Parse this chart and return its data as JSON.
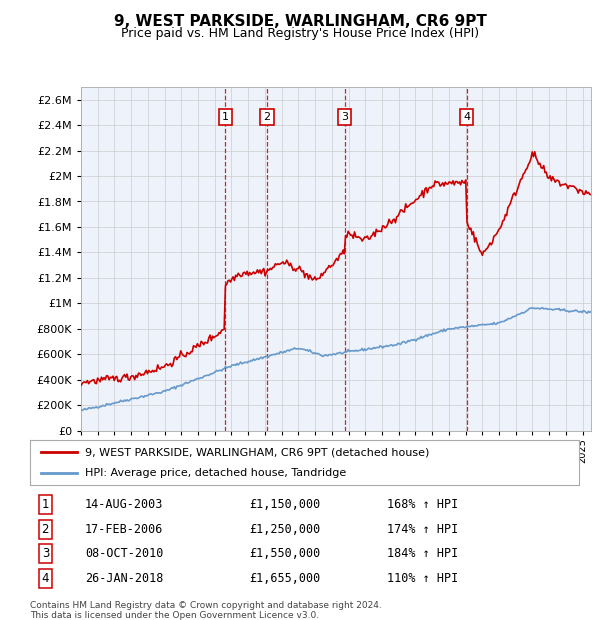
{
  "title": "9, WEST PARKSIDE, WARLINGHAM, CR6 9PT",
  "subtitle": "Price paid vs. HM Land Registry's House Price Index (HPI)",
  "legend_line1": "9, WEST PARKSIDE, WARLINGHAM, CR6 9PT (detached house)",
  "legend_line2": "HPI: Average price, detached house, Tandridge",
  "transactions": [
    {
      "num": 1,
      "date": "14-AUG-2003",
      "year": 2003.62,
      "price": 1150000,
      "pct": "168%",
      "label": "1"
    },
    {
      "num": 2,
      "date": "17-FEB-2006",
      "year": 2006.12,
      "price": 1250000,
      "pct": "174%",
      "label": "2"
    },
    {
      "num": 3,
      "date": "08-OCT-2010",
      "year": 2010.77,
      "price": 1550000,
      "pct": "184%",
      "label": "3"
    },
    {
      "num": 4,
      "date": "26-JAN-2018",
      "year": 2018.07,
      "price": 1655000,
      "pct": "110%",
      "label": "4"
    }
  ],
  "footnote1": "Contains HM Land Registry data © Crown copyright and database right 2024.",
  "footnote2": "This data is licensed under the Open Government Licence v3.0.",
  "hpi_color": "#6699cc",
  "price_color": "#cc0000",
  "vline_color": "#cc0000",
  "box_color": "#cc0000",
  "background_chart": "#eef3fb",
  "ylim_max": 2700000,
  "xlim_start": 1995.0,
  "xlim_end": 2025.5
}
